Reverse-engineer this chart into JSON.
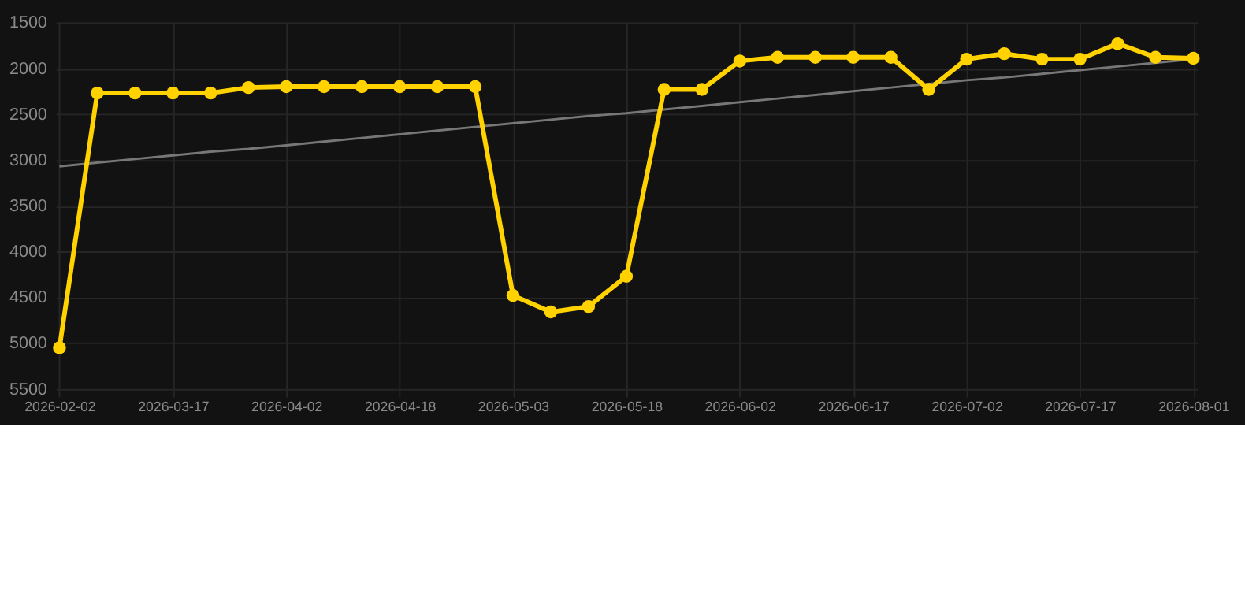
{
  "chart_data": {
    "type": "line",
    "categories": [
      "2026-02-02",
      null,
      null,
      "2026-03-17",
      null,
      null,
      "2026-04-02",
      null,
      null,
      "2026-04-18",
      null,
      null,
      "2026-05-03",
      null,
      null,
      "2026-05-18",
      null,
      null,
      "2026-06-02",
      null,
      null,
      "2026-06-17",
      null,
      null,
      "2026-07-02",
      null,
      null,
      "2026-07-17",
      null,
      null,
      "2026-08-01"
    ],
    "series": [
      {
        "color": "#ffd200",
        "marker": "circle",
        "line_style": "solid",
        "values": [
          5050,
          2270,
          2270,
          2270,
          2270,
          2210,
          2200,
          2200,
          2200,
          2200,
          2200,
          2200,
          4480,
          4660,
          4600,
          4270,
          2230,
          2230,
          1920,
          1880,
          1880,
          1880,
          1880,
          2230,
          1900,
          1840,
          1900,
          1900,
          1730,
          1880,
          1890
        ]
      },
      {
        "type": "line",
        "color": "#777777",
        "marker": "none",
        "line_style": "solid",
        "values": [
          3070,
          3030,
          2990,
          2950,
          2910,
          2880,
          2840,
          2800,
          2760,
          2720,
          2680,
          2640,
          2600,
          2560,
          2520,
          2490,
          2450,
          2410,
          2370,
          2330,
          2290,
          2250,
          2210,
          2170,
          2130,
          2100,
          2060,
          2020,
          1980,
          1940,
          1900
        ]
      }
    ],
    "ylim": [
      5500,
      1500
    ],
    "yticks": [
      1500,
      2000,
      2500,
      3000,
      3500,
      4000,
      4500,
      5000,
      5500
    ],
    "grid": true
  }
}
